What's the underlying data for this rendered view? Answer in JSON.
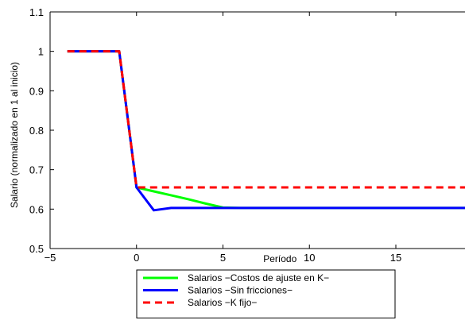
{
  "chart_data": {
    "type": "line",
    "xlabel": "Período",
    "ylabel": "Salario (normalizado en 1 al inicio)",
    "xlim": [
      -5,
      19
    ],
    "ylim": [
      0.5,
      1.1
    ],
    "xticks": [
      -5,
      0,
      5,
      10,
      15
    ],
    "yticks": [
      0.5,
      0.6,
      0.7,
      0.8,
      0.9,
      1,
      1.1
    ],
    "xtick_labels": [
      "−5",
      "0",
      "5",
      "10",
      "15"
    ],
    "ytick_labels": [
      "0.5",
      "0.6",
      "0.7",
      "0.8",
      "0.9",
      "1",
      "1.1"
    ],
    "grid": false,
    "legend_placement": "below",
    "series": [
      {
        "name": "Salarios −Costos de ajuste en K−",
        "color": "#00ff00",
        "style": "solid",
        "x": [
          -4,
          -3,
          -2,
          -1,
          0,
          1,
          2,
          3,
          4,
          5,
          6,
          7,
          8,
          9,
          10,
          11,
          12,
          13,
          14,
          15,
          16,
          17,
          18,
          19
        ],
        "y": [
          1,
          1,
          1,
          1,
          0.655,
          0.645,
          0.635,
          0.625,
          0.614,
          0.604,
          0.603,
          0.603,
          0.603,
          0.603,
          0.603,
          0.603,
          0.603,
          0.603,
          0.603,
          0.603,
          0.603,
          0.603,
          0.603,
          0.603
        ]
      },
      {
        "name": "Salarios −Sin fricciones−",
        "color": "#0000ff",
        "style": "solid",
        "x": [
          -4,
          -3,
          -2,
          -1,
          0,
          1,
          2,
          3,
          4,
          5,
          6,
          7,
          8,
          9,
          10,
          11,
          12,
          13,
          14,
          15,
          16,
          17,
          18,
          19
        ],
        "y": [
          1,
          1,
          1,
          1,
          0.655,
          0.597,
          0.603,
          0.603,
          0.603,
          0.603,
          0.603,
          0.603,
          0.603,
          0.603,
          0.603,
          0.603,
          0.603,
          0.603,
          0.603,
          0.603,
          0.603,
          0.603,
          0.603,
          0.603
        ]
      },
      {
        "name": "Salarios −K fijo−",
        "color": "#ff0000",
        "style": "dashed",
        "x": [
          -4,
          -3,
          -2,
          -1,
          0,
          1,
          2,
          3,
          4,
          5,
          6,
          7,
          8,
          9,
          10,
          11,
          12,
          13,
          14,
          15,
          16,
          17,
          18,
          19
        ],
        "y": [
          1,
          1,
          1,
          1,
          0.655,
          0.655,
          0.655,
          0.655,
          0.655,
          0.655,
          0.655,
          0.655,
          0.655,
          0.655,
          0.655,
          0.655,
          0.655,
          0.655,
          0.655,
          0.655,
          0.655,
          0.655,
          0.655,
          0.655
        ]
      }
    ]
  }
}
